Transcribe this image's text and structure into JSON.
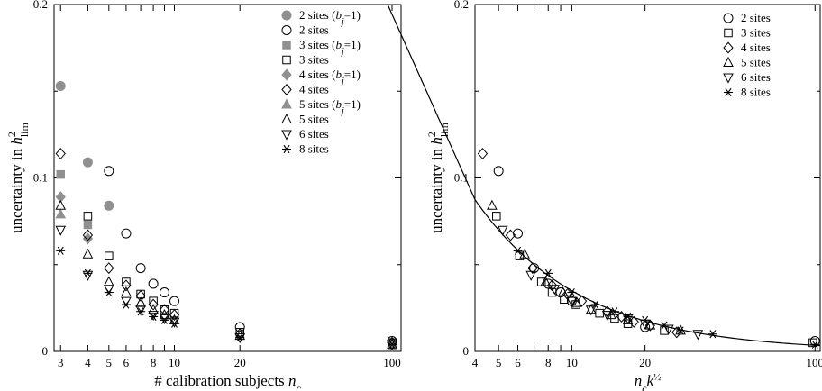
{
  "chart_data": [
    {
      "type": "scatter",
      "xscale": "log",
      "xlabel": "# calibration subjects n_c",
      "ylabel": "uncertainty in h²lim",
      "xlim": [
        2.8,
        110
      ],
      "ylim": [
        0,
        0.2
      ],
      "x_ticks": [
        3,
        4,
        5,
        6,
        7,
        8,
        9,
        10,
        20,
        100
      ],
      "x_tick_labels": [
        "3",
        "4",
        "5",
        "6",
        "",
        "8",
        "",
        "10",
        "20",
        "100"
      ],
      "y_ticks": [
        0,
        0.1,
        0.2
      ],
      "y_tick_labels": [
        "0",
        "0.1",
        "0.2"
      ],
      "legend_position": "top-right",
      "series": [
        {
          "name": "2 sites (bj=1)",
          "marker": "circle-filled",
          "x": [
            3,
            4,
            5,
            100
          ],
          "y": [
            0.153,
            0.109,
            0.084,
            0.005
          ]
        },
        {
          "name": "2 sites",
          "marker": "circle",
          "x": [
            5,
            6,
            7,
            8,
            9,
            10,
            20,
            100
          ],
          "y": [
            0.104,
            0.068,
            0.048,
            0.039,
            0.034,
            0.029,
            0.014,
            0.006
          ]
        },
        {
          "name": "3 sites (bj=1)",
          "marker": "square-filled",
          "x": [
            3,
            4,
            100
          ],
          "y": [
            0.102,
            0.073,
            0.004
          ]
        },
        {
          "name": "3 sites",
          "marker": "square",
          "x": [
            4,
            5,
            6,
            7,
            8,
            9,
            10,
            20,
            100
          ],
          "y": [
            0.078,
            0.055,
            0.04,
            0.033,
            0.029,
            0.024,
            0.022,
            0.011,
            0.005
          ]
        },
        {
          "name": "4 sites (bj=1)",
          "marker": "diamond-filled",
          "x": [
            3,
            4,
            100
          ],
          "y": [
            0.089,
            0.065,
            0.003
          ]
        },
        {
          "name": "4 sites",
          "marker": "diamond",
          "x": [
            3,
            4,
            5,
            6,
            7,
            8,
            9,
            10,
            20,
            100
          ],
          "y": [
            0.114,
            0.067,
            0.048,
            0.038,
            0.032,
            0.027,
            0.024,
            0.021,
            0.01,
            0.005
          ]
        },
        {
          "name": "5 sites (bj=1)",
          "marker": "triangle-filled",
          "x": [
            3,
            100
          ],
          "y": [
            0.079,
            0.003
          ]
        },
        {
          "name": "5 sites",
          "marker": "triangle",
          "x": [
            3,
            4,
            5,
            6,
            7,
            8,
            9,
            10,
            20,
            100
          ],
          "y": [
            0.084,
            0.056,
            0.04,
            0.034,
            0.028,
            0.024,
            0.021,
            0.018,
            0.009,
            0.004
          ]
        },
        {
          "name": "6 sites",
          "marker": "triangle-down",
          "x": [
            3,
            4,
            5,
            6,
            7,
            8,
            9,
            10,
            20,
            100
          ],
          "y": [
            0.07,
            0.044,
            0.036,
            0.029,
            0.024,
            0.021,
            0.019,
            0.017,
            0.008,
            0.004
          ]
        },
        {
          "name": "8 sites",
          "marker": "asterisk",
          "x": [
            3,
            4,
            5,
            6,
            7,
            8,
            9,
            10,
            20,
            100
          ],
          "y": [
            0.058,
            0.045,
            0.034,
            0.027,
            0.023,
            0.02,
            0.018,
            0.016,
            0.008,
            0.004
          ]
        }
      ],
      "legend_entries": [
        {
          "label": "2 sites (",
          "sub": "bj=1",
          "end": ")",
          "marker": "circle-filled"
        },
        {
          "label": "2 sites",
          "marker": "circle"
        },
        {
          "label": "3 sites (",
          "sub": "bj=1",
          "end": ")",
          "marker": "square-filled"
        },
        {
          "label": "3 sites",
          "marker": "square"
        },
        {
          "label": "4 sites (",
          "sub": "bj=1",
          "end": ")",
          "marker": "diamond-filled"
        },
        {
          "label": "4 sites",
          "marker": "diamond"
        },
        {
          "label": "5 sites (",
          "sub": "bj=1",
          "end": ")",
          "marker": "triangle-filled"
        },
        {
          "label": "5 sites",
          "marker": "triangle"
        },
        {
          "label": "6 sites",
          "marker": "triangle-down"
        },
        {
          "label": "8 sites",
          "marker": "asterisk"
        }
      ]
    },
    {
      "type": "scatter",
      "xscale": "log",
      "xlabel": "n_c k^½",
      "ylabel": "uncertainty in h²lim",
      "xlim": [
        4,
        105
      ],
      "ylim": [
        0,
        0.2
      ],
      "x_ticks": [
        4,
        5,
        6,
        7,
        8,
        9,
        10,
        20,
        100
      ],
      "x_tick_labels": [
        "4",
        "5",
        "6",
        "",
        "8",
        "",
        "10",
        "20",
        "100"
      ],
      "y_ticks": [
        0,
        0.1,
        0.2
      ],
      "y_tick_labels": [
        "0",
        "0.1",
        "0.2"
      ],
      "legend_position": "top-right",
      "fit_curve": {
        "form": "a / x",
        "a": 0.35
      },
      "series": [
        {
          "name": "2 sites",
          "marker": "circle",
          "x": [
            5,
            6,
            7,
            8,
            9,
            10,
            20,
            100
          ],
          "y": [
            0.104,
            0.068,
            0.048,
            0.039,
            0.034,
            0.029,
            0.014,
            0.006
          ]
        },
        {
          "name": "3 sites",
          "marker": "square",
          "x": [
            4.9,
            6.1,
            7.5,
            8.3,
            9.3,
            10.4,
            13,
            15,
            17,
            24,
            98
          ],
          "y": [
            0.078,
            0.055,
            0.04,
            0.034,
            0.03,
            0.027,
            0.022,
            0.019,
            0.016,
            0.012,
            0.005
          ]
        },
        {
          "name": "4 sites",
          "marker": "diamond",
          "x": [
            4.3,
            5.6,
            6.9,
            8.3,
            9.6,
            11,
            14,
            16,
            18,
            21,
            27
          ],
          "y": [
            0.114,
            0.067,
            0.048,
            0.038,
            0.033,
            0.029,
            0.023,
            0.02,
            0.017,
            0.015,
            0.011
          ]
        },
        {
          "name": "5 sites",
          "marker": "triangle",
          "x": [
            4.7,
            6.4,
            7.8,
            9.2,
            10.5,
            12,
            14.5,
            17,
            21,
            28
          ],
          "y": [
            0.084,
            0.056,
            0.04,
            0.034,
            0.028,
            0.024,
            0.021,
            0.018,
            0.015,
            0.012
          ]
        },
        {
          "name": "6 sites",
          "marker": "triangle-down",
          "x": [
            5.2,
            6.8,
            8.5,
            10,
            12,
            14,
            17,
            20,
            25,
            33
          ],
          "y": [
            0.07,
            0.044,
            0.036,
            0.029,
            0.024,
            0.021,
            0.019,
            0.016,
            0.013,
            0.01
          ]
        },
        {
          "name": "8 sites",
          "marker": "asterisk",
          "x": [
            6,
            8,
            10,
            12.5,
            15,
            17,
            20,
            24,
            28,
            38,
            100
          ],
          "y": [
            0.058,
            0.045,
            0.034,
            0.027,
            0.023,
            0.02,
            0.018,
            0.015,
            0.012,
            0.01,
            0.004
          ]
        }
      ],
      "legend_entries": [
        {
          "label": "2 sites",
          "marker": "circle"
        },
        {
          "label": "3 sites",
          "marker": "square"
        },
        {
          "label": "4 sites",
          "marker": "diamond"
        },
        {
          "label": "5 sites",
          "marker": "triangle"
        },
        {
          "label": "6 sites",
          "marker": "triangle-down"
        },
        {
          "label": "8 sites",
          "marker": "asterisk"
        }
      ]
    }
  ]
}
